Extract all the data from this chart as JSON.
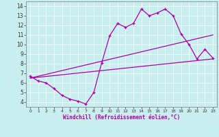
{
  "xlabel": "Windchill (Refroidissement éolien,°C)",
  "background_color": "#c8eef0",
  "line_color": "#aa00aa",
  "xlim": [
    -0.5,
    23.5
  ],
  "ylim": [
    3.5,
    14.5
  ],
  "xticks": [
    0,
    1,
    2,
    3,
    4,
    5,
    6,
    7,
    8,
    9,
    10,
    11,
    12,
    13,
    14,
    15,
    16,
    17,
    18,
    19,
    20,
    21,
    22,
    23
  ],
  "yticks": [
    4,
    5,
    6,
    7,
    8,
    9,
    10,
    11,
    12,
    13,
    14
  ],
  "line1_x": [
    0,
    1,
    2,
    3,
    4,
    5,
    6,
    7,
    8,
    9,
    10,
    11,
    12,
    13,
    14,
    15,
    16,
    17,
    18,
    19,
    20,
    21,
    22,
    23
  ],
  "line1_y": [
    6.7,
    6.2,
    6.0,
    5.4,
    4.7,
    4.3,
    4.1,
    3.8,
    5.0,
    8.1,
    10.9,
    12.2,
    11.8,
    12.2,
    13.7,
    13.0,
    13.3,
    13.7,
    13.0,
    11.1,
    10.0,
    8.5,
    9.5,
    8.6
  ],
  "line2_x": [
    0,
    23
  ],
  "line2_y": [
    6.5,
    8.5
  ],
  "line3_x": [
    0,
    23
  ],
  "line3_y": [
    6.5,
    11.0
  ]
}
